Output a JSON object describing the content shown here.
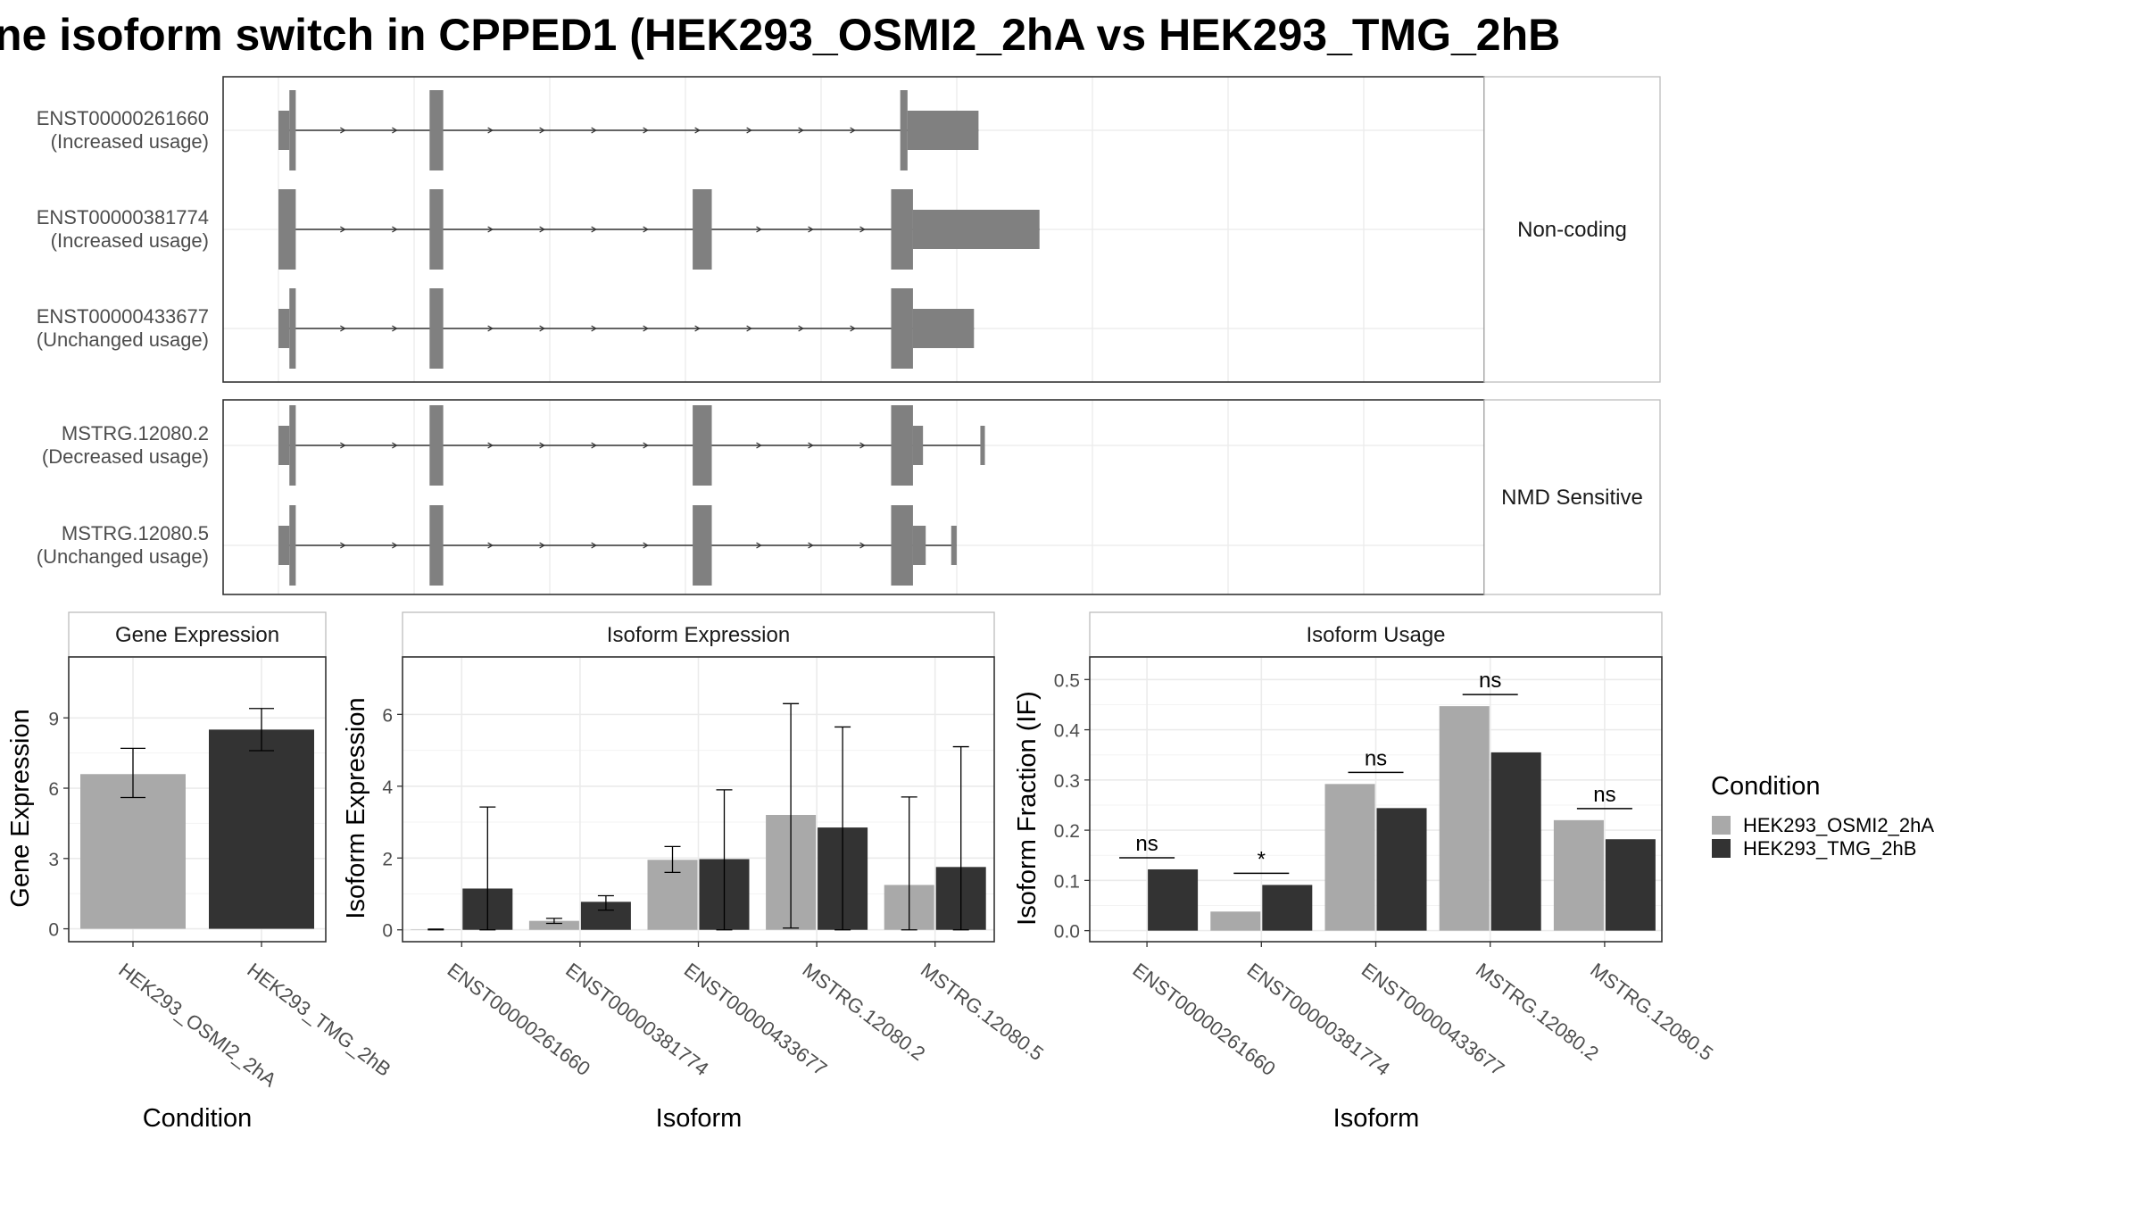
{
  "title": "ne isoform switch in CPPED1 (HEK293_OSMI2_2hA vs HEK293_TMG_2hB",
  "colors": {
    "cond1": "#a9a9a9",
    "cond2": "#333333",
    "exon": "#808080",
    "grid": "#ebebeb",
    "panel_border": "#333333",
    "strip_border": "#bdbdbd"
  },
  "structure": {
    "groups": [
      {
        "label": "Non-coding",
        "transcripts": [
          {
            "name": "ENST00000261660",
            "usage": "(Increased usage)",
            "exons": [
              [
                0,
                12,
                "nc"
              ],
              [
                12,
                19,
                "cds"
              ],
              [
                166,
                181,
                "cds"
              ],
              [
                683,
                691,
                "cds"
              ],
              [
                691,
                769,
                "nc"
              ]
            ]
          },
          {
            "name": "ENST00000381774",
            "usage": "(Increased usage)",
            "exons": [
              [
                0,
                19,
                "cds"
              ],
              [
                166,
                181,
                "cds"
              ],
              [
                455,
                476,
                "cds"
              ],
              [
                673,
                697,
                "cds"
              ],
              [
                697,
                836,
                "nc"
              ]
            ]
          },
          {
            "name": "ENST00000433677",
            "usage": "(Unchanged usage)",
            "exons": [
              [
                0,
                12,
                "nc"
              ],
              [
                12,
                19,
                "cds"
              ],
              [
                166,
                181,
                "cds"
              ],
              [
                673,
                697,
                "cds"
              ],
              [
                697,
                764,
                "nc"
              ]
            ]
          }
        ]
      },
      {
        "label": "NMD Sensitive",
        "transcripts": [
          {
            "name": "MSTRG.12080.2",
            "usage": "(Decreased usage)",
            "exons": [
              [
                0,
                12,
                "nc"
              ],
              [
                12,
                19,
                "cds"
              ],
              [
                166,
                181,
                "cds"
              ],
              [
                455,
                476,
                "cds"
              ],
              [
                673,
                697,
                "cds"
              ],
              [
                697,
                708,
                "nc"
              ],
              [
                771,
                776,
                "nc"
              ]
            ]
          },
          {
            "name": "MSTRG.12080.5",
            "usage": "(Unchanged usage)",
            "exons": [
              [
                0,
                12,
                "nc"
              ],
              [
                12,
                19,
                "cds"
              ],
              [
                166,
                181,
                "cds"
              ],
              [
                455,
                476,
                "cds"
              ],
              [
                673,
                697,
                "cds"
              ],
              [
                697,
                711,
                "nc"
              ],
              [
                739,
                745,
                "nc"
              ]
            ]
          }
        ]
      }
    ]
  },
  "chart_data": [
    {
      "type": "bar",
      "title": "Gene Expression",
      "xlabel": "Condition",
      "ylabel": "Gene Expression",
      "categories": [
        "HEK293_OSMI2_2hA",
        "HEK293_TMG_2hB"
      ],
      "values": [
        6.6,
        8.5
      ],
      "errors": [
        [
          5.6,
          7.7
        ],
        [
          7.6,
          9.4
        ]
      ],
      "yticks": [
        0,
        3,
        6,
        9
      ],
      "ylim": [
        -0.55,
        11.6
      ]
    },
    {
      "type": "bar",
      "title": "Isoform Expression",
      "xlabel": "Isoform",
      "ylabel": "Isoform Expression",
      "categories": [
        "ENST00000261660",
        "ENST00000381774",
        "ENST00000433677",
        "MSTRG.12080.2",
        "MSTRG.12080.5"
      ],
      "series": [
        {
          "name": "HEK293_OSMI2_2hA",
          "values": [
            0.01,
            0.25,
            1.95,
            3.2,
            1.25
          ],
          "errors": [
            [
              0.0,
              0.02
            ],
            [
              0.18,
              0.32
            ],
            [
              1.6,
              2.32
            ],
            [
              0.05,
              6.3
            ],
            [
              0.0,
              3.7
            ]
          ]
        },
        {
          "name": "HEK293_TMG_2hB",
          "values": [
            1.15,
            0.78,
            1.97,
            2.85,
            1.75
          ],
          "errors": [
            [
              0.0,
              3.42
            ],
            [
              0.55,
              0.95
            ],
            [
              0.0,
              3.9
            ],
            [
              0.0,
              5.65
            ],
            [
              0.0,
              5.1
            ]
          ]
        }
      ],
      "yticks": [
        0,
        2,
        4,
        6
      ],
      "ylim": [
        -0.33,
        7.6
      ]
    },
    {
      "type": "bar",
      "title": "Isoform Usage",
      "xlabel": "Isoform",
      "ylabel": "Isoform Fraction (IF)",
      "categories": [
        "ENST00000261660",
        "ENST00000381774",
        "ENST00000433677",
        "MSTRG.12080.2",
        "MSTRG.12080.5"
      ],
      "series": [
        {
          "name": "HEK293_OSMI2_2hA",
          "values": [
            0.0,
            0.038,
            0.292,
            0.447,
            0.22
          ]
        },
        {
          "name": "HEK293_TMG_2hB",
          "values": [
            0.122,
            0.091,
            0.244,
            0.355,
            0.182
          ]
        }
      ],
      "significance": [
        "ns",
        "*",
        "ns",
        "ns",
        "ns"
      ],
      "yticks": [
        0.0,
        0.1,
        0.2,
        0.3,
        0.4,
        0.5
      ],
      "ylim": [
        -0.022,
        0.545
      ]
    }
  ],
  "legend": {
    "title": "Condition",
    "items": [
      "HEK293_OSMI2_2hA",
      "HEK293_TMG_2hB"
    ]
  }
}
